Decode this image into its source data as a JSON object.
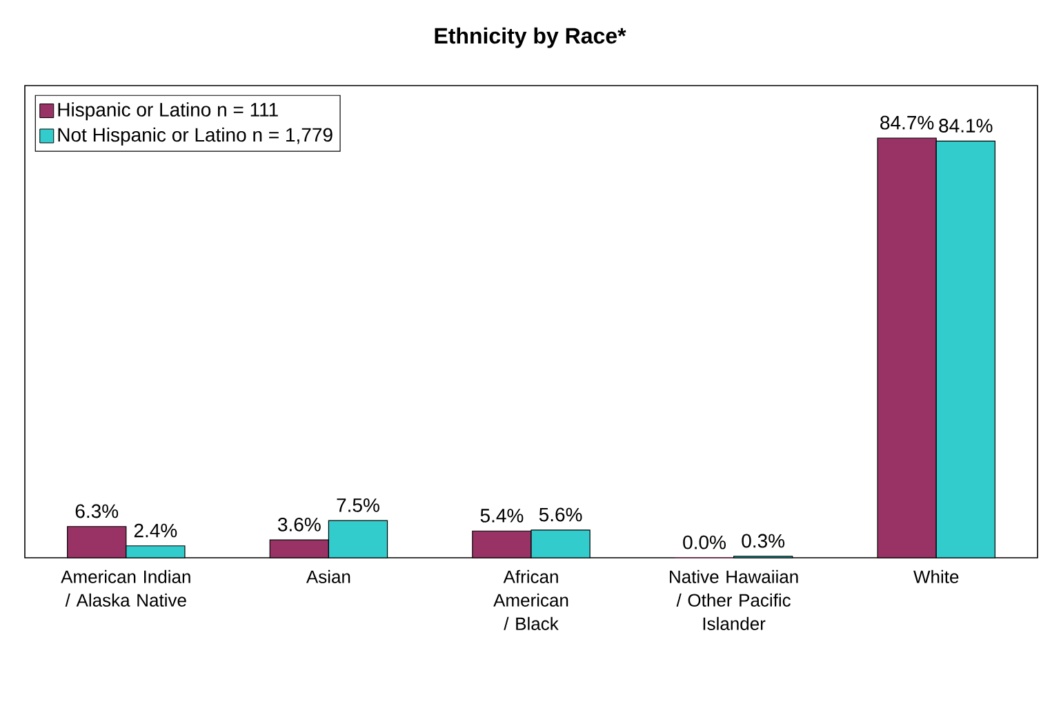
{
  "chart_data": {
    "type": "bar",
    "title": "Ethnicity by Race*",
    "categories": [
      "American Indian / Alaska Native",
      "Asian",
      "African American / Black",
      "Native Hawaiian / Other Pacific Islander",
      "White"
    ],
    "series": [
      {
        "name": "Hispanic or Latino n = 111",
        "color": "#993366",
        "values": [
          6.3,
          3.6,
          5.4,
          0.0,
          84.7
        ],
        "value_labels": [
          "6.3%",
          "3.6%",
          "5.4%",
          "0.0%",
          "84.7%"
        ]
      },
      {
        "name": "Not Hispanic or Latino n = 1,779",
        "color": "#33cccc",
        "values": [
          2.4,
          7.5,
          5.6,
          0.3,
          84.1
        ],
        "value_labels": [
          "2.4%",
          "7.5%",
          "5.6%",
          "0.3%",
          "84.1%"
        ]
      }
    ],
    "legend": "top left"
  }
}
